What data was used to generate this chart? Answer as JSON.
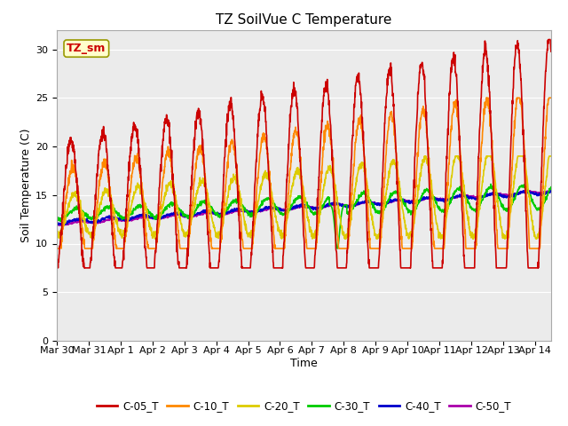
{
  "title": "TZ SoilVue C Temperature",
  "xlabel": "Time",
  "ylabel": "Soil Temperature (C)",
  "ylim": [
    0,
    32
  ],
  "yticks": [
    0,
    5,
    10,
    15,
    20,
    25,
    30
  ],
  "legend_label": "TZ_sm",
  "series": {
    "C-05_T": {
      "color": "#cc0000",
      "linewidth": 1.2
    },
    "C-10_T": {
      "color": "#ff8800",
      "linewidth": 1.2
    },
    "C-20_T": {
      "color": "#ddcc00",
      "linewidth": 1.2
    },
    "C-30_T": {
      "color": "#00cc00",
      "linewidth": 1.2
    },
    "C-40_T": {
      "color": "#0000cc",
      "linewidth": 1.2
    },
    "C-50_T": {
      "color": "#aa00aa",
      "linewidth": 1.2
    }
  },
  "plot_bg_color": "#ebebeb",
  "title_fontsize": 11,
  "axis_label_fontsize": 9,
  "tick_fontsize": 8
}
